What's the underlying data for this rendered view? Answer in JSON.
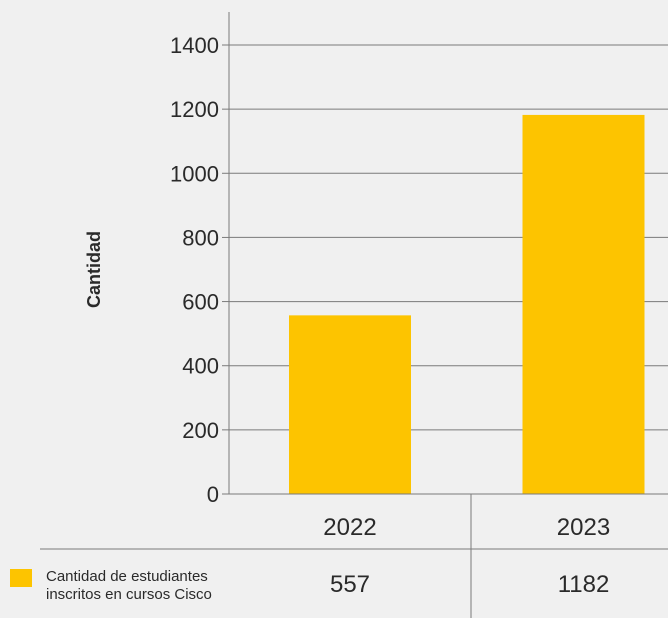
{
  "chart_data": {
    "type": "bar",
    "ylabel": "Cantidad",
    "ylim": [
      0,
      1400
    ],
    "yticks": [
      0,
      200,
      400,
      600,
      800,
      1000,
      1200,
      1400
    ],
    "grid": true,
    "categories": [
      "2022",
      "2023"
    ],
    "series": [
      {
        "name": "Cantidad de estudiantes inscritos en cursos Cisco",
        "values": [
          557,
          1182
        ]
      }
    ],
    "data_table": true,
    "bar_color": "#fdc400"
  },
  "colors": {
    "bar": "#fdc400",
    "axis": "#7a7a7a",
    "text": "#2a2a2a",
    "background": "#f0f0f0"
  }
}
